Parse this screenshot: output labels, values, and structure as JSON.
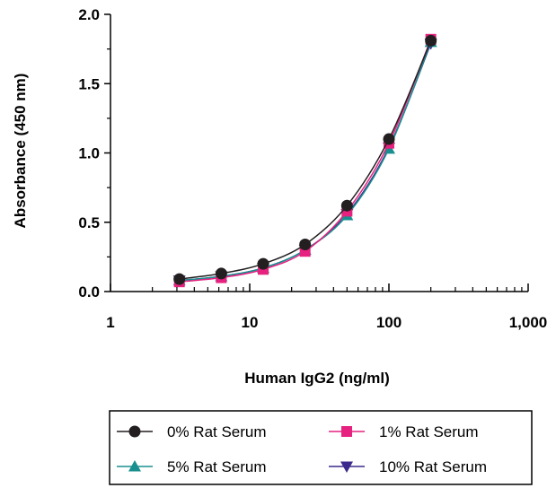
{
  "chart_data": {
    "type": "line",
    "xscale": "log",
    "xlabel": "Human IgG2 (ng/ml)",
    "ylabel": "Absorbance (450 nm)",
    "xlim": [
      1,
      1000
    ],
    "ylim": [
      0,
      2.0
    ],
    "xticks": [
      {
        "value": 1,
        "label": "1"
      },
      {
        "value": 10,
        "label": "10"
      },
      {
        "value": 100,
        "label": "100"
      },
      {
        "value": 1000,
        "label": "1,000"
      }
    ],
    "yticks": [
      {
        "value": 0,
        "label": "0.0"
      },
      {
        "value": 0.5,
        "label": "0.5"
      },
      {
        "value": 1.0,
        "label": "1.0"
      },
      {
        "value": 1.5,
        "label": "1.5"
      },
      {
        "value": 2.0,
        "label": "2.0"
      }
    ],
    "grid": false,
    "legend_position": "bottom",
    "x": [
      3.125,
      6.25,
      12.5,
      25,
      50,
      100,
      200
    ],
    "series": [
      {
        "name": "0% Rat Serum",
        "marker": "circle",
        "color": "#231f20",
        "values": [
          0.09,
          0.13,
          0.2,
          0.34,
          0.62,
          1.1,
          1.81
        ]
      },
      {
        "name": "1% Rat Serum",
        "marker": "square",
        "color": "#e6217f",
        "values": [
          0.07,
          0.1,
          0.16,
          0.29,
          0.58,
          1.07,
          1.82
        ]
      },
      {
        "name": "5% Rat Serum",
        "marker": "triangle-up",
        "color": "#1a8f8f",
        "values": [
          0.08,
          0.11,
          0.17,
          0.3,
          0.55,
          1.03,
          1.8
        ]
      },
      {
        "name": "10% Rat Serum",
        "marker": "triangle-down",
        "color": "#3b2a8c",
        "values": [
          0.08,
          0.11,
          0.17,
          0.3,
          0.56,
          1.04,
          1.79
        ]
      }
    ]
  }
}
